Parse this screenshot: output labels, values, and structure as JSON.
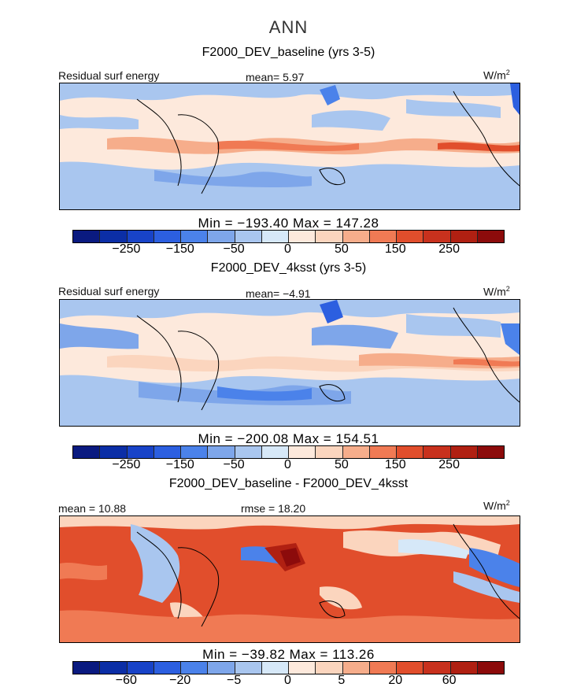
{
  "title": "ANN",
  "colors": {
    "land": "#fde9dc",
    "pos": [
      "#fde9dc",
      "#fbd5be",
      "#f6ad8b",
      "#f07a54",
      "#e14e2c",
      "#c8311d",
      "#b02012",
      "#8c0b0b"
    ],
    "neg": [
      "#d6e8f8",
      "#a9c6ef",
      "#7ea6ea",
      "#4b82ea",
      "#2c5fe0",
      "#1843c8",
      "#0b2ea6",
      "#0a1a80"
    ]
  },
  "colorbar_main": {
    "swatches": [
      "#0a1a80",
      "#0b2ea6",
      "#1843c8",
      "#2c5fe0",
      "#4b82ea",
      "#7ea6ea",
      "#a9c6ef",
      "#d6e8f8",
      "#fde9dc",
      "#fbd5be",
      "#f6ad8b",
      "#f07a54",
      "#e14e2c",
      "#c8311d",
      "#b02012",
      "#8c0b0b"
    ],
    "ticks": [
      "−250",
      "−150",
      "−50",
      "0",
      "50",
      "150",
      "250"
    ]
  },
  "colorbar_diff": {
    "swatches": [
      "#0a1a80",
      "#0b2ea6",
      "#1843c8",
      "#2c5fe0",
      "#4b82ea",
      "#7ea6ea",
      "#a9c6ef",
      "#d6e8f8",
      "#fde9dc",
      "#fbd5be",
      "#f6ad8b",
      "#f07a54",
      "#e14e2c",
      "#c8311d",
      "#b02012",
      "#8c0b0b"
    ],
    "ticks": [
      "−60",
      "−20",
      "−5",
      "0",
      "5",
      "20",
      "60"
    ]
  },
  "panels": [
    {
      "title": "F2000_DEV_baseline (yrs 3-5)",
      "variable": "Residual surf energy",
      "stat": "mean=   5.97",
      "units": "W/m",
      "units_sup": "2",
      "minmax": "Min = −193.40 Max = 147.28"
    },
    {
      "title": "F2000_DEV_4ksst (yrs 3-5)",
      "variable": "Residual surf energy",
      "stat": "mean=  −4.91",
      "units": "W/m",
      "units_sup": "2",
      "minmax": "Min = −200.08 Max = 154.51"
    },
    {
      "title": "F2000_DEV_baseline - F2000_DEV_4ksst",
      "stat_left": "mean =  10.88",
      "stat": "rmse =  18.20",
      "units": "W/m",
      "units_sup": "2",
      "minmax": "Min = −39.82 Max = 113.26"
    }
  ]
}
